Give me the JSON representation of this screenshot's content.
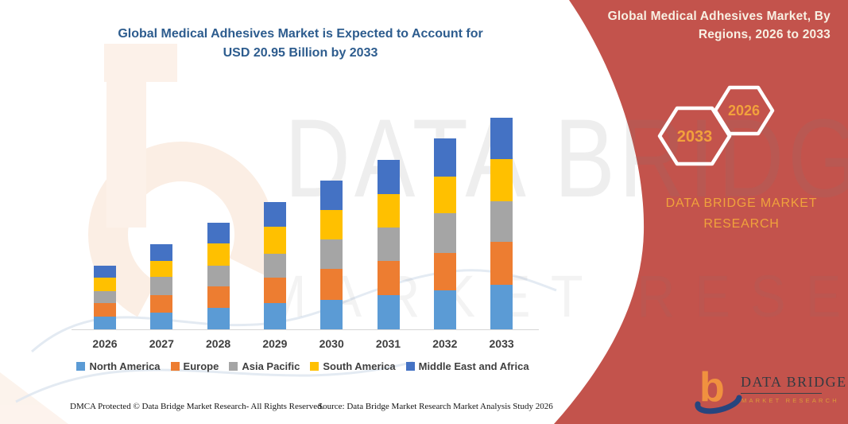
{
  "title": {
    "line1": "Global Medical Adhesives Market is Expected to Account for",
    "line2": "USD 20.95 Billion by 2033"
  },
  "banner": {
    "line1": "Global Medical Adhesives Market, By",
    "line2": "Regions, 2026 to 2033",
    "hexagons": [
      {
        "label": "2033"
      },
      {
        "label": "2026"
      }
    ],
    "brand": {
      "line1": "DATA BRIDGE MARKET",
      "line2": "RESEARCH"
    }
  },
  "logo": {
    "name": "DATA BRIDGE",
    "sub": "MARKET RESEARCH"
  },
  "watermark": {
    "line1": "DATA BRIDGE",
    "line2": "MARKET RESEARCH"
  },
  "footer": {
    "dmca": "DMCA Protected © Data Bridge Market Research-  All Rights Reserved.",
    "source": "Source: Data Bridge Market Research  Market Analysis Study 2026"
  },
  "colors": {
    "accent_red": "#C3534C",
    "gold": "#F0A23C",
    "title_blue": "#2D5C8E",
    "axis_gray": "#D6D6D6",
    "label_gray": "#3F3F3F"
  },
  "chart_data": {
    "type": "bar",
    "stacked": true,
    "unit": "USD Billion",
    "title": "Global Medical Adhesives Market, By Regions, 2026 to 2033",
    "annotation": "USD 20.95 Billion by 2033",
    "categories": [
      "2026",
      "2027",
      "2028",
      "2029",
      "2030",
      "2031",
      "2032",
      "2033"
    ],
    "series": [
      {
        "name": "North America",
        "color": "#5B9BD5",
        "values": [
          1.28,
          1.65,
          2.1,
          2.62,
          2.95,
          3.42,
          3.87,
          4.4
        ]
      },
      {
        "name": "Europe",
        "color": "#ED7D31",
        "values": [
          1.3,
          1.75,
          2.12,
          2.48,
          3.0,
          3.32,
          3.7,
          4.3
        ]
      },
      {
        "name": "Asia Pacific",
        "color": "#A5A5A5",
        "values": [
          1.24,
          1.8,
          2.1,
          2.4,
          2.98,
          3.38,
          3.9,
          3.95
        ]
      },
      {
        "name": "South America",
        "color": "#FFC000",
        "values": [
          1.28,
          1.6,
          2.15,
          2.62,
          2.88,
          3.28,
          3.63,
          4.22
        ]
      },
      {
        "name": "Middle East and Africa",
        "color": "#4472C4",
        "values": [
          1.17,
          1.63,
          2.07,
          2.47,
          2.95,
          3.38,
          3.79,
          4.08
        ]
      }
    ],
    "totals": [
      6.27,
      8.43,
      10.54,
      12.59,
      14.76,
      16.78,
      18.89,
      20.95
    ],
    "ylim": [
      0,
      21
    ],
    "grid": false,
    "legend_position": "bottom"
  }
}
